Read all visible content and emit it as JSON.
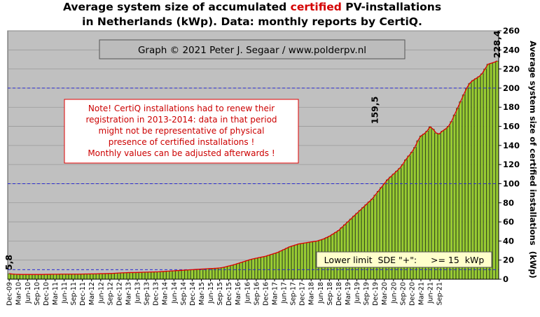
{
  "title": {
    "line1_pre": "Average system size of accumulated ",
    "line1_highlight": "certified",
    "line1_post": " PV-installations",
    "line2": "in Netherlands (kWp). Data: monthly reports by CertiQ."
  },
  "colors": {
    "plot_background": "#c0c0c0",
    "bar_fill": "#99cc33",
    "bar_stroke": "#1a3300",
    "trend_line": "#e00000",
    "reference_lines": "#2a2ad0",
    "title_highlight": "#d40000",
    "note_border": "#e00000",
    "note_text": "#cc0000"
  },
  "copyright": "Graph © 2021 Peter J. Segaar / www.polderpv.nl",
  "note": [
    "Note! CertiQ installations had to renew their",
    "registration in 2013-2014:  data in that period",
    "might  not be representative of physical",
    "presence of certified installations  !",
    "Monthly values can be adjusted afterwards !"
  ],
  "lower_limit_label": "Lower limit  SDE \"+\":     >= 15  kWp",
  "chart_data": {
    "type": "bar",
    "ylabel": "Average system size of certified installations  (kWp)",
    "ylim": [
      0,
      260
    ],
    "yticks": [
      0,
      20,
      40,
      60,
      80,
      100,
      120,
      140,
      160,
      180,
      200,
      220,
      240,
      260
    ],
    "reference_lines": [
      10,
      100,
      200
    ],
    "grid": true,
    "x_tick_labels": [
      "Dec-09",
      "Mar-10",
      "Jun-10",
      "Sep-10",
      "Dec-10",
      "Mar-11",
      "Jun-11",
      "Sep-11",
      "Dec-11",
      "Mar-12",
      "Jun-12",
      "Sep-12",
      "Dec-12",
      "Mar-13",
      "Jun-13",
      "Sep-13",
      "Dec-13",
      "Mar-14",
      "Jun-14",
      "Sep-14",
      "Dec-14",
      "Mar-15",
      "Jun-15",
      "Sep-15",
      "Dec-15",
      "Mar-16",
      "Jun-16",
      "Sep-16",
      "Dec-16",
      "Mar-17",
      "Jun-17",
      "Sep-17",
      "Dec-17",
      "Mar-18",
      "Jun-18",
      "Sep-18",
      "Dec-18",
      "Mar-19",
      "Jun-19",
      "Sep-19",
      "Dec-19",
      "Mar-20",
      "Jun-20",
      "Sep-20",
      "Dec-20",
      "Mar-21",
      "Jun-21",
      "Sep-21"
    ],
    "series": [
      {
        "values": [
          5.8,
          5.4,
          5.2,
          5.1,
          5,
          5,
          5,
          5,
          5,
          5,
          5,
          5,
          5.1,
          5.1,
          5.2,
          5.2,
          5.2,
          5.3,
          5.3,
          5.3,
          5.3,
          5.3,
          5.3,
          5.3,
          5.4,
          5.5,
          5.5,
          5.6,
          5.6,
          5.7,
          5.8,
          5.8,
          5.9,
          6,
          6.1,
          6.3,
          6.5,
          6.7,
          6.8,
          6.9,
          7,
          7,
          7.1,
          7.2,
          7.3,
          7.4,
          7.5,
          7.6,
          7.7,
          7.8,
          8,
          8.2,
          8.4,
          8.6,
          8.8,
          9,
          9.2,
          9.4,
          9.6,
          9.8,
          10,
          10.2,
          10.4,
          10.6,
          10.8,
          11,
          11.2,
          11.3,
          11.5,
          11.8,
          12.3,
          13,
          13.8,
          14.6,
          15.5,
          16.5,
          17.5,
          18.5,
          19.5,
          20.5,
          21.3,
          22,
          22.7,
          23.3,
          24,
          25,
          26,
          27,
          28,
          29.5,
          31,
          32.5,
          34,
          35,
          36,
          37,
          37.5,
          38,
          38.5,
          39,
          39.5,
          40,
          41,
          42,
          43.5,
          45,
          47,
          49,
          51,
          54,
          57,
          60,
          63,
          66,
          69,
          72,
          75,
          78,
          81,
          84,
          88,
          92,
          96,
          100,
          104,
          107,
          110,
          113,
          116,
          120,
          125,
          129,
          133,
          138,
          145,
          150,
          152,
          155,
          159.5,
          157,
          153,
          152,
          155,
          157,
          160,
          165,
          172,
          179,
          186,
          193,
          200,
          205,
          208,
          210,
          212,
          215,
          220,
          225,
          226,
          227,
          228.4
        ]
      }
    ],
    "annotations": [
      {
        "text": "5,8",
        "value": 5.8,
        "at": "first"
      },
      {
        "text": "159,5",
        "value": 159.5,
        "at": "Dec-19"
      },
      {
        "text": "228,4",
        "value": 228.4,
        "at": "last"
      }
    ]
  }
}
